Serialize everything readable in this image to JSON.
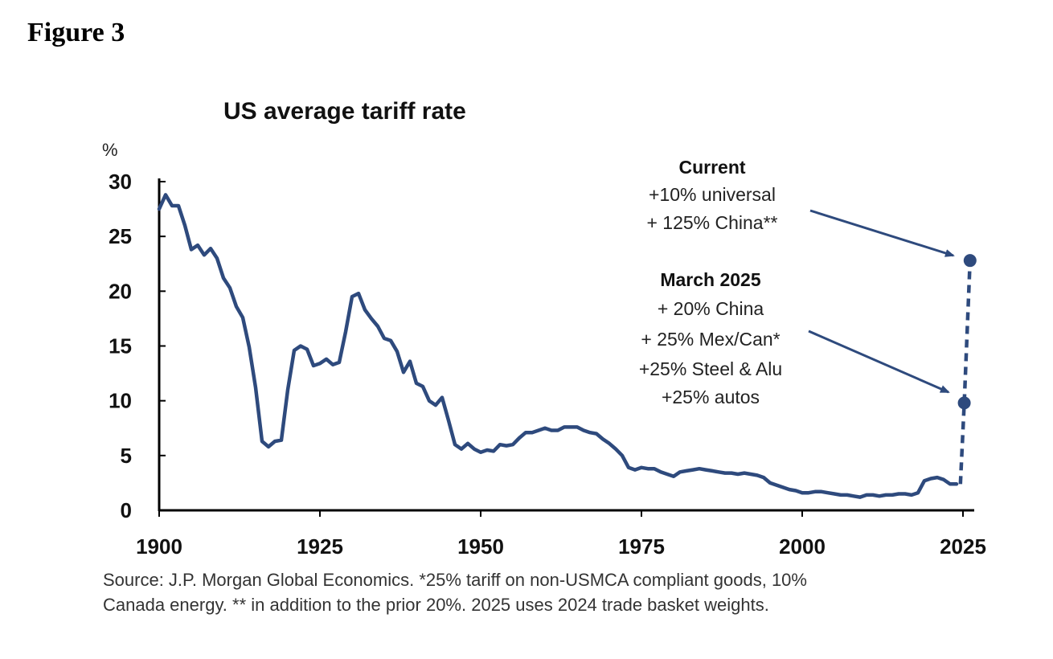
{
  "figure_label": "Figure 3",
  "colors": {
    "series": "#2e4a7d",
    "axis": "#000000"
  },
  "chart_data": {
    "type": "line",
    "title": "US average tariff rate",
    "ylabel": "%",
    "xlabel": "",
    "xlim": [
      1900,
      2026
    ],
    "ylim": [
      0,
      30
    ],
    "x_ticks": [
      {
        "value": 1900,
        "label": "1900"
      },
      {
        "value": 1925,
        "label": "1925"
      },
      {
        "value": 1950,
        "label": "1950"
      },
      {
        "value": 1975,
        "label": "1975"
      },
      {
        "value": 2000,
        "label": "2000"
      },
      {
        "value": 2025,
        "label": "2025"
      }
    ],
    "y_ticks": [
      {
        "value": 0,
        "label": "0"
      },
      {
        "value": 5,
        "label": "5"
      },
      {
        "value": 10,
        "label": "10"
      },
      {
        "value": 15,
        "label": "15"
      },
      {
        "value": 20,
        "label": "20"
      },
      {
        "value": 25,
        "label": "25"
      },
      {
        "value": 30,
        "label": "30"
      }
    ],
    "series": [
      {
        "name": "US average tariff rate",
        "style": "solid",
        "x": [
          1900,
          1901,
          1902,
          1903,
          1904,
          1905,
          1906,
          1907,
          1908,
          1909,
          1910,
          1911,
          1912,
          1913,
          1914,
          1915,
          1916,
          1917,
          1918,
          1919,
          1920,
          1921,
          1922,
          1923,
          1924,
          1925,
          1926,
          1927,
          1928,
          1929,
          1930,
          1931,
          1932,
          1933,
          1934,
          1935,
          1936,
          1937,
          1938,
          1939,
          1940,
          1941,
          1942,
          1943,
          1944,
          1945,
          1946,
          1947,
          1948,
          1949,
          1950,
          1951,
          1952,
          1953,
          1954,
          1955,
          1956,
          1957,
          1958,
          1959,
          1960,
          1961,
          1962,
          1963,
          1964,
          1965,
          1966,
          1967,
          1968,
          1969,
          1970,
          1971,
          1972,
          1973,
          1974,
          1975,
          1976,
          1977,
          1978,
          1979,
          1980,
          1981,
          1982,
          1983,
          1984,
          1985,
          1986,
          1987,
          1988,
          1989,
          1990,
          1991,
          1992,
          1993,
          1994,
          1995,
          1996,
          1997,
          1998,
          1999,
          2000,
          2001,
          2002,
          2003,
          2004,
          2005,
          2006,
          2007,
          2008,
          2009,
          2010,
          2011,
          2012,
          2013,
          2014,
          2015,
          2016,
          2017,
          2018,
          2019,
          2020,
          2021,
          2022,
          2023,
          2024
        ],
        "values": [
          27.5,
          28.8,
          27.8,
          27.8,
          26.0,
          23.8,
          24.2,
          23.3,
          23.9,
          23.0,
          21.2,
          20.3,
          18.6,
          17.6,
          14.9,
          11.2,
          6.3,
          5.8,
          6.3,
          6.4,
          11.0,
          14.6,
          15.0,
          14.7,
          13.2,
          13.4,
          13.8,
          13.3,
          13.5,
          16.3,
          19.5,
          19.8,
          18.3,
          17.5,
          16.8,
          15.7,
          15.5,
          14.5,
          12.6,
          13.6,
          11.6,
          11.3,
          10.0,
          9.6,
          10.3,
          8.2,
          6.0,
          5.6,
          6.1,
          5.6,
          5.3,
          5.5,
          5.4,
          6.0,
          5.9,
          6.0,
          6.6,
          7.1,
          7.1,
          7.3,
          7.5,
          7.3,
          7.3,
          7.6,
          7.6,
          7.6,
          7.3,
          7.1,
          7.0,
          6.5,
          6.1,
          5.6,
          5.0,
          3.9,
          3.7,
          3.9,
          3.8,
          3.8,
          3.5,
          3.3,
          3.1,
          3.5,
          3.6,
          3.7,
          3.8,
          3.7,
          3.6,
          3.5,
          3.4,
          3.4,
          3.3,
          3.4,
          3.3,
          3.2,
          3.0,
          2.5,
          2.3,
          2.1,
          1.9,
          1.8,
          1.6,
          1.6,
          1.7,
          1.7,
          1.6,
          1.5,
          1.4,
          1.4,
          1.3,
          1.2,
          1.4,
          1.4,
          1.3,
          1.4,
          1.4,
          1.5,
          1.5,
          1.4,
          1.6,
          2.7,
          2.9,
          3.0,
          2.8,
          2.4,
          2.4
        ]
      },
      {
        "name": "2025 projection",
        "style": "dashed",
        "x": [
          2024.6,
          2025.2,
          2026.1
        ],
        "values": [
          2.4,
          9.8,
          22.8
        ]
      }
    ],
    "markers": [
      {
        "name": "March 2025",
        "x": 2025.2,
        "y": 9.8
      },
      {
        "name": "Current",
        "x": 2026.1,
        "y": 22.8
      }
    ],
    "annotations": [
      {
        "heading": "Current",
        "lines": [
          "+10% universal",
          "+ 125% China**"
        ]
      },
      {
        "heading": "March 2025",
        "lines": [
          "+ 20% China",
          "+ 25% Mex/Can*",
          "+25% Steel & Alu",
          "+25% autos"
        ]
      }
    ]
  },
  "source": {
    "line1": "Source: J.P. Morgan Global Economics. *25% tariff on non-USMCA compliant goods, 10%",
    "line2": "Canada energy. ** in addition to the prior 20%. 2025 uses 2024 trade basket weights."
  }
}
